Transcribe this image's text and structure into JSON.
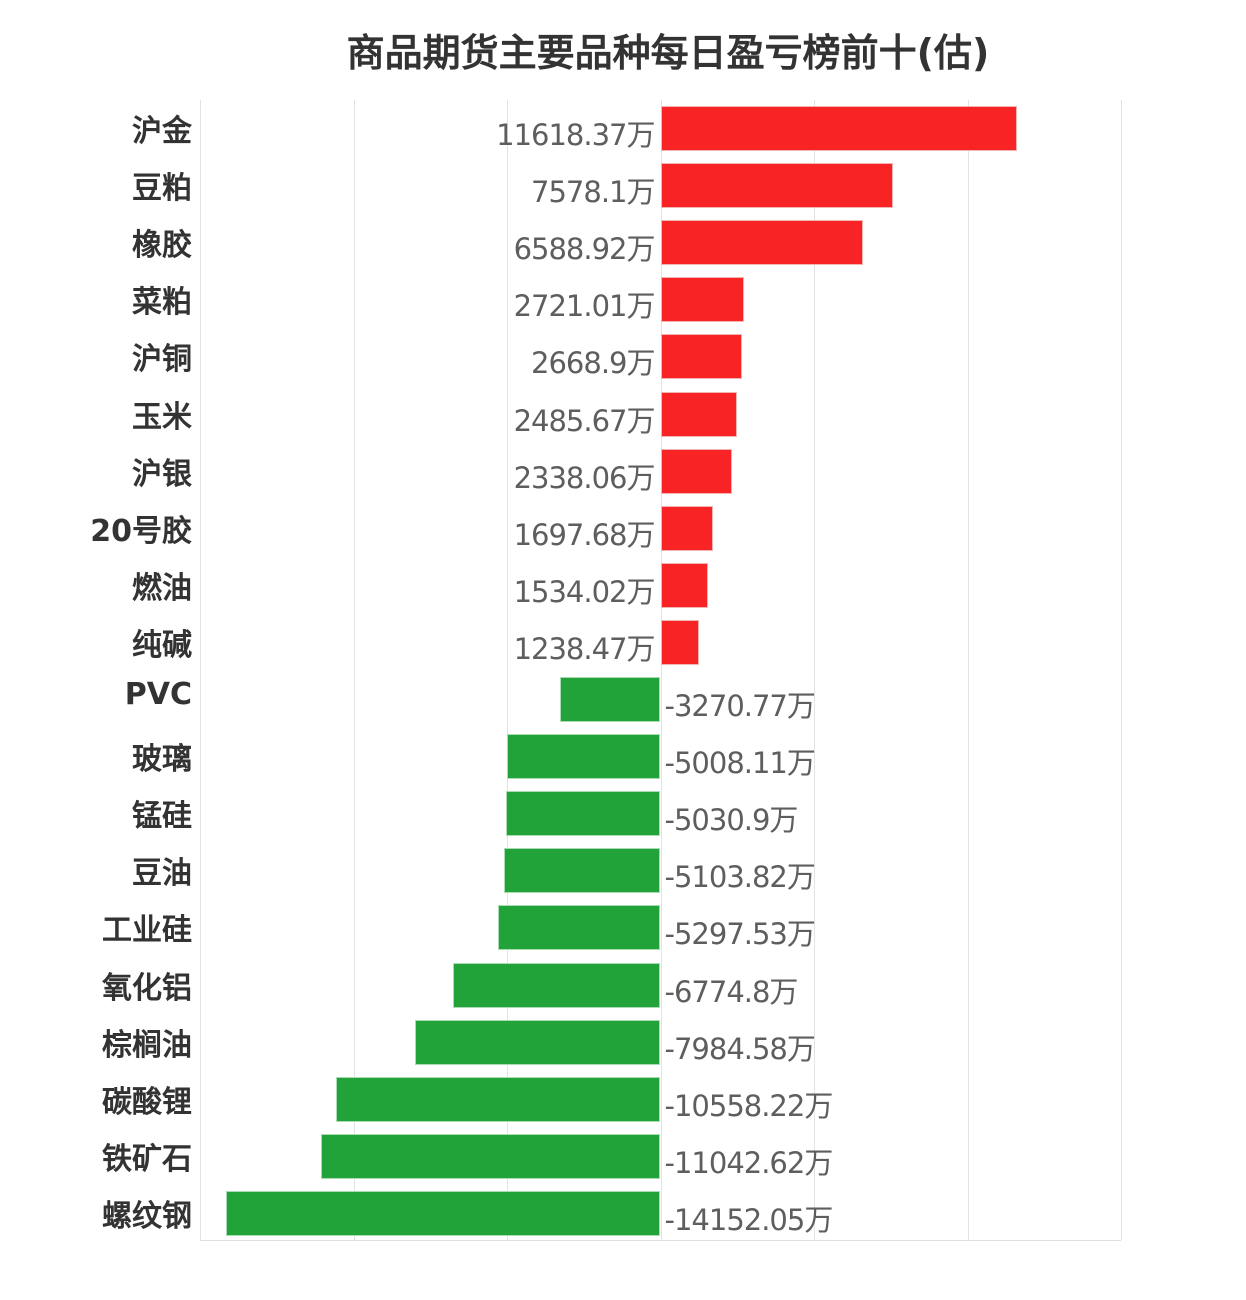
{
  "title": "商品期货主要品种每日盈亏榜前十(估)",
  "unit": "万",
  "colors": {
    "positive": "#f82325",
    "negative": "#21a33a",
    "grid": "#e3e3e3",
    "label": "#333333",
    "value": "#5e5e5e"
  },
  "chart_data": {
    "type": "bar",
    "orientation": "horizontal",
    "title": "商品期货主要品种每日盈亏榜前十(估)",
    "xlabel": "",
    "ylabel": "",
    "unit": "万",
    "xlim": [
      -15000,
      15000
    ],
    "grid": true,
    "gridlines_x": [
      -15000,
      -10000,
      -5000,
      0,
      5000,
      10000,
      15000
    ],
    "legend": null,
    "categories": [
      "沪金",
      "豆粕",
      "橡胶",
      "菜粕",
      "沪铜",
      "玉米",
      "沪银",
      "20号胶",
      "燃油",
      "纯碱",
      "PVC",
      "玻璃",
      "锰硅",
      "豆油",
      "工业硅",
      "氧化铝",
      "棕榈油",
      "碳酸锂",
      "铁矿石",
      "螺纹钢"
    ],
    "values": [
      11618.37,
      7578.1,
      6588.92,
      2721.01,
      2668.9,
      2485.67,
      2338.06,
      1697.68,
      1534.02,
      1238.47,
      -3270.77,
      -5008.11,
      -5030.9,
      -5103.82,
      -5297.53,
      -6774.8,
      -7984.58,
      -10558.22,
      -11042.62,
      -14152.05
    ],
    "labels": [
      "11618.37万",
      "7578.1万",
      "6588.92万",
      "2721.01万",
      "2668.9万",
      "2485.67万",
      "2338.06万",
      "1697.68万",
      "1534.02万",
      "1238.47万",
      "-3270.77万",
      "-5008.11万",
      "-5030.9万",
      "-5103.82万",
      "-5297.53万",
      "-6774.8万",
      "-7984.58万",
      "-10558.22万",
      "-11042.62万",
      "-14152.05万"
    ]
  },
  "rows": [
    {
      "name": "沪金",
      "label": "11618.37万"
    },
    {
      "name": "豆粕",
      "label": "7578.1万"
    },
    {
      "name": "橡胶",
      "label": "6588.92万"
    },
    {
      "name": "菜粕",
      "label": "2721.01万"
    },
    {
      "name": "沪铜",
      "label": "2668.9万"
    },
    {
      "name": "玉米",
      "label": "2485.67万"
    },
    {
      "name": "沪银",
      "label": "2338.06万"
    },
    {
      "name": "20号胶",
      "label": "1697.68万"
    },
    {
      "name": "燃油",
      "label": "1534.02万"
    },
    {
      "name": "纯碱",
      "label": "1238.47万"
    },
    {
      "name": "PVC",
      "label": "-3270.77万"
    },
    {
      "name": "玻璃",
      "label": "-5008.11万"
    },
    {
      "name": "锰硅",
      "label": "-5030.9万"
    },
    {
      "name": "豆油",
      "label": "-5103.82万"
    },
    {
      "name": "工业硅",
      "label": "-5297.53万"
    },
    {
      "name": "氧化铝",
      "label": "-6774.8万"
    },
    {
      "name": "棕榈油",
      "label": "-7984.58万"
    },
    {
      "name": "碳酸锂",
      "label": "-10558.22万"
    },
    {
      "name": "铁矿石",
      "label": "-11042.62万"
    },
    {
      "name": "螺纹钢",
      "label": "-14152.05万"
    }
  ]
}
